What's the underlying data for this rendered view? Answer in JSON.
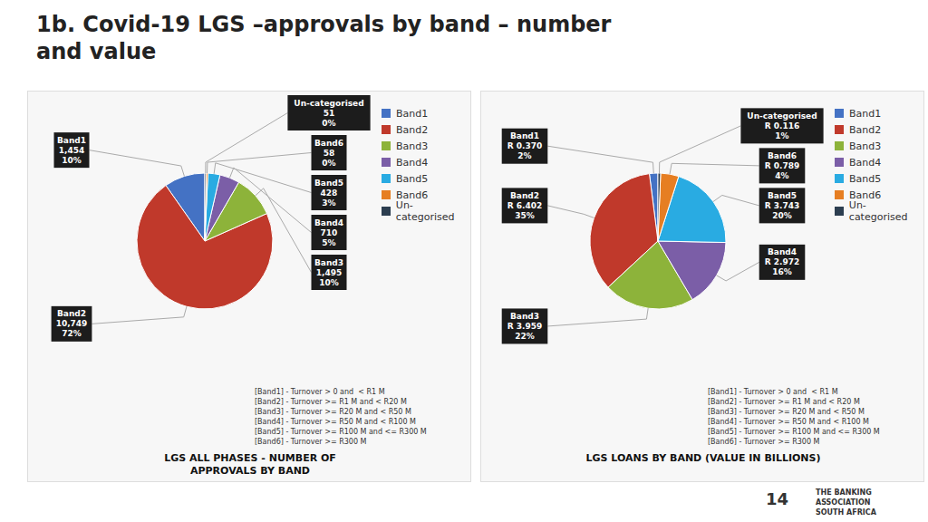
{
  "title": "1b. Covid-19 LGS –approvals by band – number\nand value",
  "annotations": [
    "14",
    "THE BANKING",
    "ASSOCIATION",
    "SOUTH AFRICA"
  ],
  "chart_data": [
    {
      "type": "pie",
      "title": "LGS ALL PHASES - NUMBER OF\nAPPROVALS BY BAND",
      "categories": [
        "Band1",
        "Band2",
        "Band3",
        "Band4",
        "Band5",
        "Band6",
        "Un-categorised"
      ],
      "values": [
        1454,
        10749,
        1495,
        710,
        428,
        58,
        51
      ],
      "value_labels": [
        "1,454",
        "10,749",
        "1,495",
        "710",
        "428",
        "58",
        "51"
      ],
      "percent_labels": [
        "10%",
        "72%",
        "10%",
        "5%",
        "3%",
        "0%",
        "0%"
      ],
      "colors": [
        "#4472c4",
        "#c0392b",
        "#8db33a",
        "#7b5ea7",
        "#29abe2",
        "#e67e22",
        "#2c3e50"
      ],
      "data_labels": true,
      "legend": "upper right",
      "annotations": [
        "[Band1] - Turnover > 0 and  < R1 M",
        "[Band2] - Turnover >= R1 M and < R20 M",
        "[Band3] - Turnover >= R20 M and < R50 M",
        "[Band4] - Turnover >= R50 M and < R100 M",
        "[Band5] - Turnover >= R100 M and <= R300 M",
        "[Band6] - Turnover >= R300 M"
      ]
    },
    {
      "type": "pie",
      "title": "LGS LOANS BY BAND (VALUE IN BILLIONS)",
      "categories": [
        "Band1",
        "Band2",
        "Band3",
        "Band4",
        "Band5",
        "Band6",
        "Un-categorised"
      ],
      "values": [
        0.37,
        6.402,
        3.959,
        2.972,
        3.743,
        0.789,
        0.116
      ],
      "value_labels": [
        "R 0.370",
        "R 6.402",
        "R 3.959",
        "R 2.972",
        "R 3.743",
        "R 0.789",
        "R 0.116"
      ],
      "percent_labels": [
        "2%",
        "35%",
        "22%",
        "16%",
        "20%",
        "4%",
        "1%"
      ],
      "colors": [
        "#4472c4",
        "#c0392b",
        "#8db33a",
        "#7b5ea7",
        "#29abe2",
        "#e67e22",
        "#2c3e50"
      ],
      "data_labels": true,
      "legend": "upper right",
      "annotations": [
        "[Band1] - Turnover > 0 and  < R1 M",
        "[Band2] - Turnover >= R1 M and < R20 M",
        "[Band3] - Turnover >= R20 M and < R50 M",
        "[Band4] - Turnover >= R50 M and < R100 M",
        "[Band5] - Turnover >= R100 M and <= R300 M",
        "[Band6] - Turnover >= R300 M"
      ]
    }
  ]
}
